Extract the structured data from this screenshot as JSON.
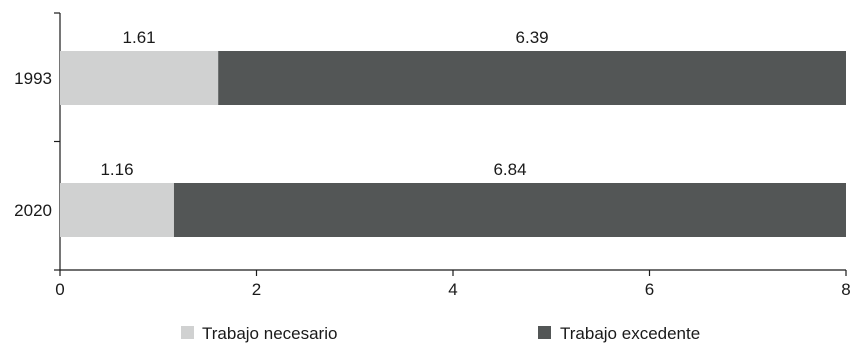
{
  "chart_data": {
    "type": "bar",
    "orientation": "horizontal",
    "stacked": true,
    "categories": [
      "1993",
      "2020"
    ],
    "series": [
      {
        "name": "Trabajo necesario",
        "values": [
          1.61,
          1.16
        ],
        "color": "#d0d1d1"
      },
      {
        "name": "Trabajo excedente",
        "values": [
          6.39,
          6.84
        ],
        "color": "#535656"
      }
    ],
    "xlim": [
      0,
      8
    ],
    "xticks": [
      "0",
      "2",
      "4",
      "6",
      "8"
    ],
    "data_labels": [
      [
        "1.61",
        "6.39"
      ],
      [
        "1.16",
        "6.84"
      ]
    ],
    "grid": false,
    "legend_position": "bottom"
  }
}
